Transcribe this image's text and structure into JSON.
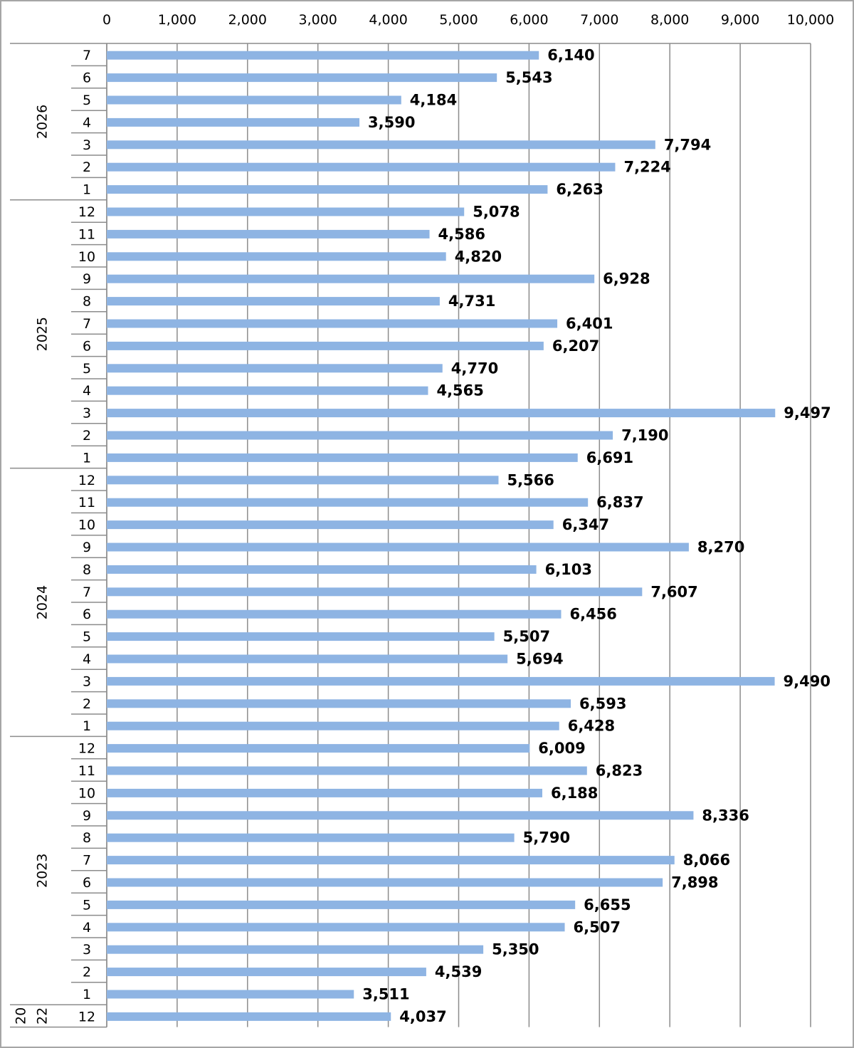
{
  "chart_data": {
    "type": "bar",
    "orientation": "horizontal",
    "axis_position": "top",
    "xlim": [
      0,
      10000
    ],
    "x_ticks": [
      "0",
      "1,000",
      "2,000",
      "3,000",
      "4,000",
      "5,000",
      "6,000",
      "7,000",
      "8,000",
      "9,000",
      "10,000"
    ],
    "grid": true,
    "legend": "none",
    "bar_color": "#8eb4e3",
    "groups": [
      {
        "label": "2026",
        "items": [
          {
            "cat": "7",
            "value": 6140,
            "label": "6,140"
          },
          {
            "cat": "6",
            "value": 5543,
            "label": "5,543"
          },
          {
            "cat": "5",
            "value": 4184,
            "label": "4,184"
          },
          {
            "cat": "4",
            "value": 3590,
            "label": "3,590"
          },
          {
            "cat": "3",
            "value": 7794,
            "label": "7,794"
          },
          {
            "cat": "2",
            "value": 7224,
            "label": "7,224"
          },
          {
            "cat": "1",
            "value": 6263,
            "label": "6,263"
          }
        ]
      },
      {
        "label": "2025",
        "items": [
          {
            "cat": "12",
            "value": 5078,
            "label": "5,078"
          },
          {
            "cat": "11",
            "value": 4586,
            "label": "4,586"
          },
          {
            "cat": "10",
            "value": 4820,
            "label": "4,820"
          },
          {
            "cat": "9",
            "value": 6928,
            "label": "6,928"
          },
          {
            "cat": "8",
            "value": 4731,
            "label": "4,731"
          },
          {
            "cat": "7",
            "value": 6401,
            "label": "6,401"
          },
          {
            "cat": "6",
            "value": 6207,
            "label": "6,207"
          },
          {
            "cat": "5",
            "value": 4770,
            "label": "4,770"
          },
          {
            "cat": "4",
            "value": 4565,
            "label": "4,565"
          },
          {
            "cat": "3",
            "value": 9497,
            "label": "9,497"
          },
          {
            "cat": "2",
            "value": 7190,
            "label": "7,190"
          },
          {
            "cat": "1",
            "value": 6691,
            "label": "6,691"
          }
        ]
      },
      {
        "label": "2024",
        "items": [
          {
            "cat": "12",
            "value": 5566,
            "label": "5,566"
          },
          {
            "cat": "11",
            "value": 6837,
            "label": "6,837"
          },
          {
            "cat": "10",
            "value": 6347,
            "label": "6,347"
          },
          {
            "cat": "9",
            "value": 8270,
            "label": "8,270"
          },
          {
            "cat": "8",
            "value": 6103,
            "label": "6,103"
          },
          {
            "cat": "7",
            "value": 7607,
            "label": "7,607"
          },
          {
            "cat": "6",
            "value": 6456,
            "label": "6,456"
          },
          {
            "cat": "5",
            "value": 5507,
            "label": "5,507"
          },
          {
            "cat": "4",
            "value": 5694,
            "label": "5,694"
          },
          {
            "cat": "3",
            "value": 9490,
            "label": "9,490"
          },
          {
            "cat": "2",
            "value": 6593,
            "label": "6,593"
          },
          {
            "cat": "1",
            "value": 6428,
            "label": "6,428"
          }
        ]
      },
      {
        "label": "2023",
        "items": [
          {
            "cat": "12",
            "value": 6009,
            "label": "6,009"
          },
          {
            "cat": "11",
            "value": 6823,
            "label": "6,823"
          },
          {
            "cat": "10",
            "value": 6188,
            "label": "6,188"
          },
          {
            "cat": "9",
            "value": 8336,
            "label": "8,336"
          },
          {
            "cat": "8",
            "value": 5790,
            "label": "5,790"
          },
          {
            "cat": "7",
            "value": 8066,
            "label": "8,066"
          },
          {
            "cat": "6",
            "value": 7898,
            "label": "7,898"
          },
          {
            "cat": "5",
            "value": 6655,
            "label": "6,655"
          },
          {
            "cat": "4",
            "value": 6507,
            "label": "6,507"
          },
          {
            "cat": "3",
            "value": 5350,
            "label": "5,350"
          },
          {
            "cat": "2",
            "value": 4539,
            "label": "4,539"
          },
          {
            "cat": "1",
            "value": 3511,
            "label": "3,511"
          }
        ]
      },
      {
        "label": "2022",
        "label_lines": [
          "20",
          "22"
        ],
        "items": [
          {
            "cat": "12",
            "value": 4037,
            "label": "4,037"
          }
        ]
      }
    ]
  }
}
